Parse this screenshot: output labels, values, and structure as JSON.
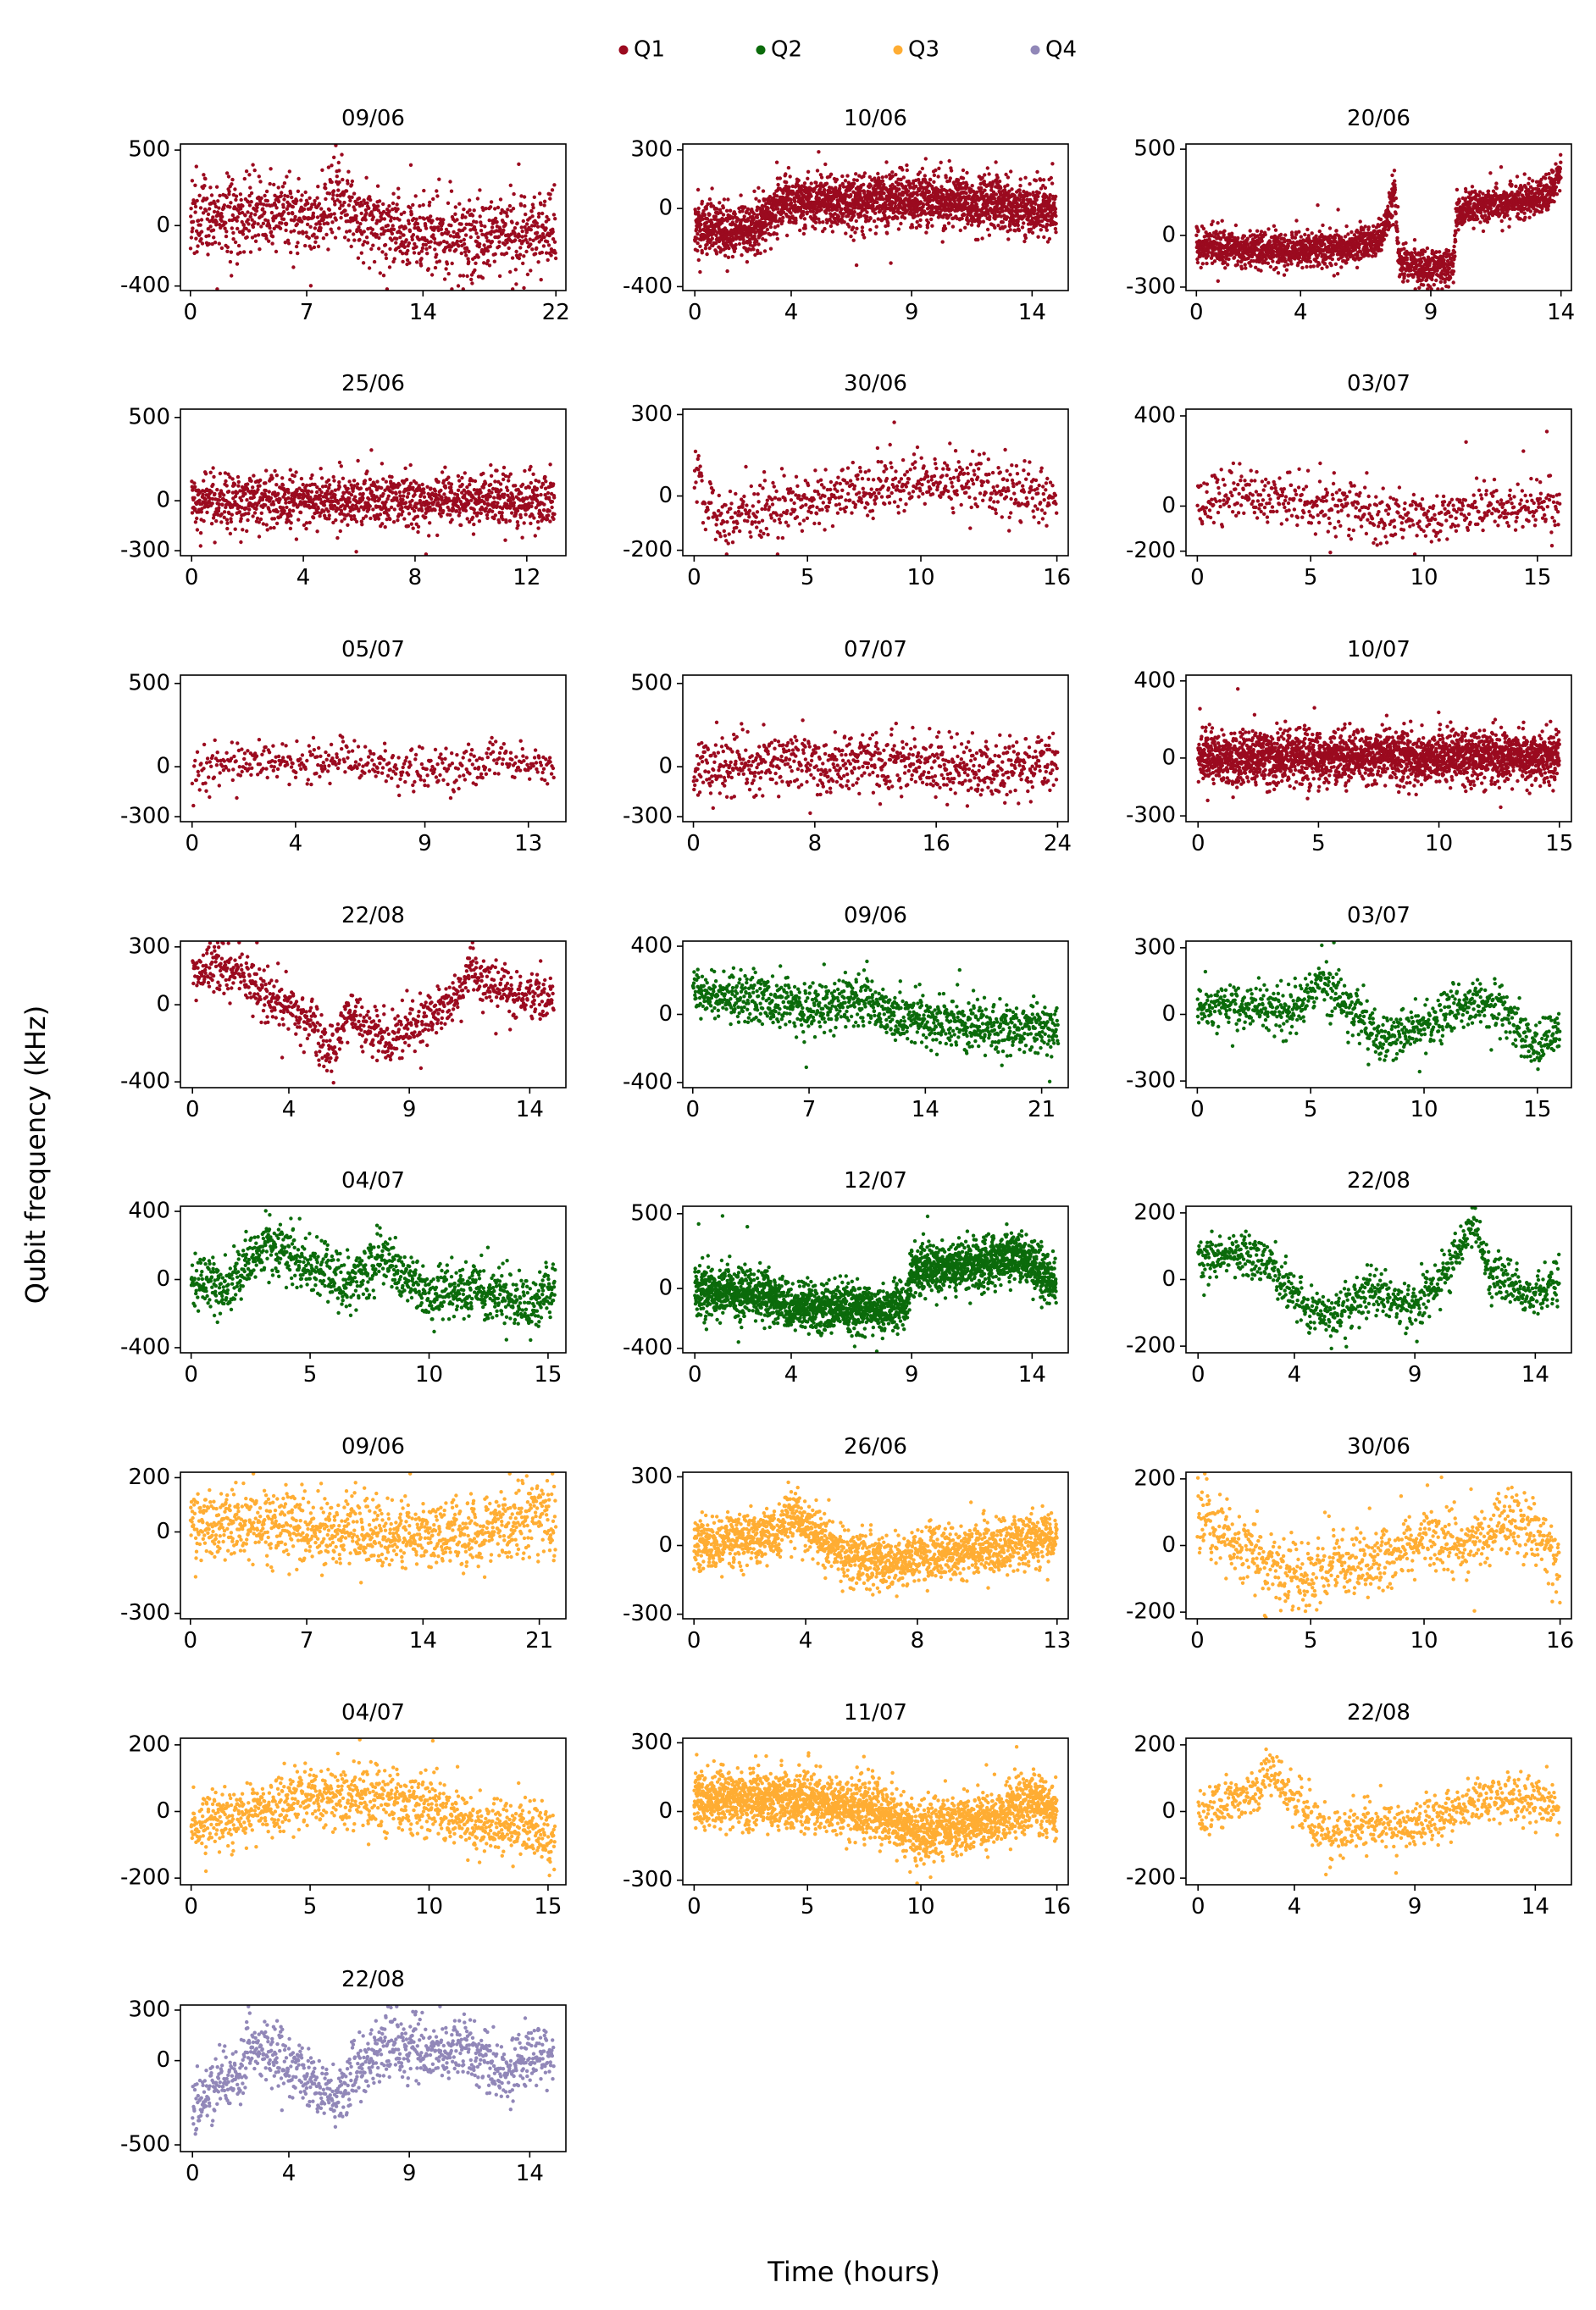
{
  "figure": {
    "ylabel": "Qubit frequency (kHz)",
    "xlabel": "Time (hours)"
  },
  "legend": [
    {
      "label": "Q1",
      "color": "#9b0a1f"
    },
    {
      "label": "Q2",
      "color": "#0b6b0b"
    },
    {
      "label": "Q3",
      "color": "#ffad33"
    },
    {
      "label": "Q4",
      "color": "#9187b8"
    }
  ],
  "chart_data": [
    {
      "type": "scatter",
      "title": "09/06",
      "series": "Q1",
      "xlim": [
        -0.6,
        22.6
      ],
      "xticks": [
        0,
        7,
        14,
        22
      ],
      "ylim": [
        -430,
        540
      ],
      "yticks": [
        500,
        0,
        -400
      ],
      "yticklabels": [
        "500",
        "0",
        "-400"
      ],
      "duration": 22,
      "n": 1200,
      "sigma": 130,
      "anchors": [
        [
          0,
          80
        ],
        [
          4,
          70
        ],
        [
          7,
          60
        ],
        [
          9,
          180
        ],
        [
          10,
          100
        ],
        [
          12,
          -20
        ],
        [
          16,
          -110
        ],
        [
          19,
          -60
        ],
        [
          22,
          -50
        ]
      ]
    },
    {
      "type": "scatter",
      "title": "10/06",
      "series": "Q1",
      "xlim": [
        -0.5,
        15.5
      ],
      "xticks": [
        0,
        4,
        9,
        14
      ],
      "ylim": [
        -420,
        330
      ],
      "yticks": [
        300,
        0,
        -400
      ],
      "yticklabels": [
        "300",
        "0",
        "-400"
      ],
      "duration": 15,
      "n": 2600,
      "sigma": 65,
      "anchors": [
        [
          0,
          -100
        ],
        [
          2.5,
          -110
        ],
        [
          3,
          -40
        ],
        [
          3.5,
          20
        ],
        [
          9,
          50
        ],
        [
          11,
          40
        ],
        [
          15,
          -10
        ]
      ]
    },
    {
      "type": "scatter",
      "title": "20/06",
      "series": "Q1",
      "xlim": [
        -0.4,
        14.4
      ],
      "xticks": [
        0,
        4,
        9,
        14
      ],
      "ylim": [
        -320,
        530
      ],
      "yticks": [
        500,
        0,
        -300
      ],
      "yticklabels": [
        "500",
        "0",
        "-300"
      ],
      "duration": 14,
      "n": 2200,
      "sigma": 50,
      "anchors": [
        [
          0,
          -60
        ],
        [
          3,
          -90
        ],
        [
          6,
          -60
        ],
        [
          7,
          -20
        ],
        [
          7.4,
          120
        ],
        [
          7.6,
          280
        ],
        [
          7.8,
          -170
        ],
        [
          9,
          -180
        ],
        [
          9.9,
          -180
        ],
        [
          10,
          130
        ],
        [
          12,
          190
        ],
        [
          13.5,
          230
        ],
        [
          14,
          380
        ]
      ]
    },
    {
      "type": "scatter",
      "title": "25/06",
      "series": "Q1",
      "xlim": [
        -0.4,
        13.4
      ],
      "xticks": [
        0,
        4,
        8,
        12
      ],
      "ylim": [
        -330,
        550
      ],
      "yticks": [
        500,
        0,
        -300
      ],
      "yticklabels": [
        "500",
        "0",
        "-300"
      ],
      "duration": 13,
      "n": 1300,
      "sigma": 80,
      "anchors": [
        [
          0,
          0
        ],
        [
          13,
          0
        ]
      ]
    },
    {
      "type": "scatter",
      "title": "30/06",
      "series": "Q1",
      "xlim": [
        -0.5,
        16.5
      ],
      "xticks": [
        0,
        5,
        10,
        16
      ],
      "ylim": [
        -220,
        320
      ],
      "yticks": [
        300,
        0,
        -200
      ],
      "yticklabels": [
        "300",
        "0",
        "-200"
      ],
      "duration": 16,
      "n": 650,
      "sigma": 55,
      "anchors": [
        [
          0,
          100
        ],
        [
          1,
          -100
        ],
        [
          3,
          -50
        ],
        [
          6,
          0
        ],
        [
          10,
          60
        ],
        [
          13,
          40
        ],
        [
          16,
          -20
        ]
      ]
    },
    {
      "type": "scatter",
      "title": "03/07",
      "series": "Q1",
      "xlim": [
        -0.5,
        16.5
      ],
      "xticks": [
        0,
        5,
        10,
        15
      ],
      "ylim": [
        -220,
        430
      ],
      "yticks": [
        400,
        0,
        -200
      ],
      "yticklabels": [
        "400",
        "0",
        "-200"
      ],
      "duration": 16,
      "n": 600,
      "sigma": 60,
      "anchors": [
        [
          0,
          0
        ],
        [
          2,
          50
        ],
        [
          5,
          20
        ],
        [
          8,
          -30
        ],
        [
          10,
          -70
        ],
        [
          12,
          -10
        ],
        [
          16,
          0
        ]
      ]
    },
    {
      "type": "scatter",
      "title": "05/07",
      "series": "Q1",
      "xlim": [
        -0.45,
        14.45
      ],
      "xticks": [
        0,
        4,
        9,
        13
      ],
      "ylim": [
        -330,
        550
      ],
      "yticks": [
        500,
        0,
        -300
      ],
      "yticklabels": [
        "500",
        "0",
        "-300"
      ],
      "duration": 14,
      "n": 450,
      "sigma": 60,
      "anchors": [
        [
          0,
          -40
        ],
        [
          3,
          50
        ],
        [
          6,
          20
        ],
        [
          10,
          -30
        ],
        [
          12,
          60
        ],
        [
          14,
          -20
        ]
      ]
    },
    {
      "type": "scatter",
      "title": "07/07",
      "series": "Q1",
      "xlim": [
        -0.7,
        24.7
      ],
      "xticks": [
        0,
        8,
        16,
        24
      ],
      "ylim": [
        -330,
        550
      ],
      "yticks": [
        500,
        0,
        -300
      ],
      "yticklabels": [
        "500",
        "0",
        "-300"
      ],
      "duration": 24,
      "n": 800,
      "sigma": 90,
      "anchors": [
        [
          0,
          -30
        ],
        [
          6,
          40
        ],
        [
          12,
          20
        ],
        [
          18,
          0
        ],
        [
          24,
          0
        ]
      ]
    },
    {
      "type": "scatter",
      "title": "10/07",
      "series": "Q1",
      "xlim": [
        -0.5,
        15.5
      ],
      "xticks": [
        0,
        5,
        10,
        15
      ],
      "ylim": [
        -330,
        430
      ],
      "yticks": [
        400,
        0,
        -300
      ],
      "yticklabels": [
        "400",
        "0",
        "-300"
      ],
      "duration": 15,
      "n": 2600,
      "sigma": 65,
      "anchors": [
        [
          0,
          0
        ],
        [
          15,
          10
        ]
      ]
    },
    {
      "type": "scatter",
      "title": "22/08",
      "series": "Q1",
      "xlim": [
        -0.5,
        15.5
      ],
      "xticks": [
        0,
        4,
        9,
        14
      ],
      "ylim": [
        -430,
        330
      ],
      "yticks": [
        300,
        0,
        -400
      ],
      "yticklabels": [
        "300",
        "0",
        "-400"
      ],
      "duration": 15,
      "n": 900,
      "sigma": 65,
      "anchors": [
        [
          0,
          150
        ],
        [
          1,
          220
        ],
        [
          2,
          160
        ],
        [
          3,
          50
        ],
        [
          5,
          -100
        ],
        [
          5.7,
          -280
        ],
        [
          6.5,
          -20
        ],
        [
          8,
          -200
        ],
        [
          10,
          -50
        ],
        [
          11,
          50
        ],
        [
          11.5,
          200
        ],
        [
          12,
          100
        ],
        [
          15,
          0
        ]
      ]
    },
    {
      "type": "scatter",
      "title": "09/06",
      "series": "Q2",
      "xlim": [
        -0.6,
        22.6
      ],
      "xticks": [
        0,
        7,
        14,
        21
      ],
      "ylim": [
        -430,
        430
      ],
      "yticks": [
        400,
        0,
        -400
      ],
      "yticklabels": [
        "400",
        "0",
        "-400"
      ],
      "duration": 22,
      "n": 1100,
      "sigma": 75,
      "anchors": [
        [
          0,
          120
        ],
        [
          3,
          100
        ],
        [
          7,
          40
        ],
        [
          10,
          90
        ],
        [
          13,
          -30
        ],
        [
          18,
          -70
        ],
        [
          22,
          -80
        ]
      ]
    },
    {
      "type": "scatter",
      "title": "03/07",
      "series": "Q2",
      "xlim": [
        -0.5,
        16.5
      ],
      "xticks": [
        0,
        5,
        10,
        15
      ],
      "ylim": [
        -330,
        330
      ],
      "yticks": [
        300,
        0,
        -300
      ],
      "yticklabels": [
        "300",
        "0",
        "-300"
      ],
      "duration": 16,
      "n": 900,
      "sigma": 55,
      "anchors": [
        [
          0,
          30
        ],
        [
          2,
          50
        ],
        [
          4,
          0
        ],
        [
          5.5,
          150
        ],
        [
          7,
          0
        ],
        [
          8,
          -110
        ],
        [
          10,
          -50
        ],
        [
          12,
          50
        ],
        [
          13,
          50
        ],
        [
          15,
          -150
        ],
        [
          16,
          -100
        ]
      ]
    },
    {
      "type": "scatter",
      "title": "04/07",
      "series": "Q2",
      "xlim": [
        -0.45,
        15.75
      ],
      "xticks": [
        0,
        5,
        10,
        15
      ],
      "ylim": [
        -430,
        430
      ],
      "yticks": [
        400,
        0,
        -400
      ],
      "yticklabels": [
        "400",
        "0",
        "-400"
      ],
      "duration": 15.3,
      "n": 1100,
      "sigma": 80,
      "anchors": [
        [
          0,
          0
        ],
        [
          1.5,
          -50
        ],
        [
          3,
          200
        ],
        [
          5,
          80
        ],
        [
          7,
          -30
        ],
        [
          8,
          150
        ],
        [
          10,
          -100
        ],
        [
          12,
          -50
        ],
        [
          14,
          -150
        ],
        [
          15.3,
          -50
        ]
      ]
    },
    {
      "type": "scatter",
      "title": "12/07",
      "series": "Q2",
      "xlim": [
        -0.5,
        15.5
      ],
      "xticks": [
        0,
        4,
        9,
        14
      ],
      "ylim": [
        -430,
        550
      ],
      "yticks": [
        500,
        0,
        -400
      ],
      "yticklabels": [
        "500",
        "0",
        "-400"
      ],
      "duration": 15,
      "n": 2600,
      "sigma": 80,
      "anchors": [
        [
          0,
          0
        ],
        [
          3,
          -50
        ],
        [
          4,
          -130
        ],
        [
          8.8,
          -130
        ],
        [
          9,
          120
        ],
        [
          12,
          170
        ],
        [
          13.5,
          230
        ],
        [
          15,
          30
        ]
      ]
    },
    {
      "type": "scatter",
      "title": "22/08",
      "series": "Q2",
      "xlim": [
        -0.5,
        15.5
      ],
      "xticks": [
        0,
        4,
        9,
        14
      ],
      "ylim": [
        -220,
        220
      ],
      "yticks": [
        200,
        0,
        -200
      ],
      "yticklabels": [
        "200",
        "0",
        "-200"
      ],
      "duration": 15,
      "n": 900,
      "sigma": 35,
      "anchors": [
        [
          0,
          50
        ],
        [
          1,
          80
        ],
        [
          3,
          50
        ],
        [
          4,
          -50
        ],
        [
          5.5,
          -120
        ],
        [
          7,
          -30
        ],
        [
          9,
          -80
        ],
        [
          10,
          0
        ],
        [
          11,
          100
        ],
        [
          11.5,
          180
        ],
        [
          12,
          20
        ],
        [
          14,
          -50
        ],
        [
          15,
          0
        ]
      ]
    },
    {
      "type": "scatter",
      "title": "09/06",
      "series": "Q3",
      "xlim": [
        -0.6,
        22.6
      ],
      "xticks": [
        0,
        7,
        14,
        21
      ],
      "ylim": [
        -320,
        220
      ],
      "yticks": [
        200,
        0,
        -300
      ],
      "yticklabels": [
        "200",
        "0",
        "-300"
      ],
      "duration": 22,
      "n": 1100,
      "sigma": 65,
      "anchors": [
        [
          0,
          20
        ],
        [
          6,
          30
        ],
        [
          12,
          -20
        ],
        [
          18,
          0
        ],
        [
          21,
          70
        ],
        [
          22,
          30
        ]
      ]
    },
    {
      "type": "scatter",
      "title": "26/06",
      "series": "Q3",
      "xlim": [
        -0.4,
        13.4
      ],
      "xticks": [
        0,
        4,
        8,
        13
      ],
      "ylim": [
        -320,
        320
      ],
      "yticks": [
        300,
        0,
        -300
      ],
      "yticklabels": [
        "300",
        "0",
        "-300"
      ],
      "duration": 13,
      "n": 1800,
      "sigma": 55,
      "anchors": [
        [
          0,
          0
        ],
        [
          3,
          50
        ],
        [
          3.5,
          150
        ],
        [
          4.5,
          40
        ],
        [
          5.5,
          -50
        ],
        [
          7,
          -80
        ],
        [
          9,
          -30
        ],
        [
          11,
          0
        ],
        [
          13,
          50
        ]
      ]
    },
    {
      "type": "scatter",
      "title": "30/06",
      "series": "Q3",
      "xlim": [
        -0.5,
        16.5
      ],
      "xticks": [
        0,
        5,
        10,
        16
      ],
      "ylim": [
        -220,
        220
      ],
      "yticks": [
        200,
        0,
        -200
      ],
      "yticklabels": [
        "200",
        "0",
        "-200"
      ],
      "duration": 16,
      "n": 900,
      "sigma": 50,
      "anchors": [
        [
          0,
          100
        ],
        [
          1,
          40
        ],
        [
          3,
          -50
        ],
        [
          4.5,
          -100
        ],
        [
          6,
          -50
        ],
        [
          8,
          -50
        ],
        [
          10,
          30
        ],
        [
          12,
          -10
        ],
        [
          14,
          80
        ],
        [
          15,
          20
        ],
        [
          16,
          -50
        ]
      ]
    },
    {
      "type": "scatter",
      "title": "04/07",
      "series": "Q3",
      "xlim": [
        -0.45,
        15.75
      ],
      "xticks": [
        0,
        5,
        10,
        15
      ],
      "ylim": [
        -220,
        220
      ],
      "yticks": [
        200,
        0,
        -200
      ],
      "yticklabels": [
        "200",
        "0",
        "-200"
      ],
      "duration": 15.3,
      "n": 1100,
      "sigma": 45,
      "anchors": [
        [
          0,
          -40
        ],
        [
          2,
          -10
        ],
        [
          4,
          20
        ],
        [
          6,
          50
        ],
        [
          8,
          40
        ],
        [
          10,
          20
        ],
        [
          12,
          -50
        ],
        [
          14,
          -40
        ],
        [
          15.3,
          -80
        ]
      ]
    },
    {
      "type": "scatter",
      "title": "11/07",
      "series": "Q3",
      "xlim": [
        -0.5,
        16.5
      ],
      "xticks": [
        0,
        5,
        10,
        16
      ],
      "ylim": [
        -320,
        320
      ],
      "yticks": [
        300,
        0,
        -300
      ],
      "yticklabels": [
        "300",
        "0",
        "-300"
      ],
      "duration": 16,
      "n": 2600,
      "sigma": 60,
      "anchors": [
        [
          0,
          60
        ],
        [
          5,
          50
        ],
        [
          8,
          0
        ],
        [
          10,
          -100
        ],
        [
          13,
          -30
        ],
        [
          15,
          50
        ],
        [
          16,
          0
        ]
      ]
    },
    {
      "type": "scatter",
      "title": "22/08",
      "series": "Q3",
      "xlim": [
        -0.5,
        15.5
      ],
      "xticks": [
        0,
        4,
        9,
        14
      ],
      "ylim": [
        -220,
        220
      ],
      "yticks": [
        200,
        0,
        -200
      ],
      "yticklabels": [
        "200",
        "0",
        "-200"
      ],
      "duration": 15,
      "n": 800,
      "sigma": 35,
      "anchors": [
        [
          0,
          0
        ],
        [
          2,
          40
        ],
        [
          3,
          120
        ],
        [
          4,
          40
        ],
        [
          5.5,
          -80
        ],
        [
          7,
          -30
        ],
        [
          9,
          -50
        ],
        [
          11,
          20
        ],
        [
          13,
          40
        ],
        [
          15,
          10
        ]
      ]
    },
    {
      "type": "scatter",
      "title": "22/08",
      "series": "Q4",
      "xlim": [
        -0.5,
        15.5
      ],
      "xticks": [
        0,
        4,
        9,
        14
      ],
      "ylim": [
        -540,
        330
      ],
      "yticks": [
        300,
        0,
        -500
      ],
      "yticklabels": [
        "300",
        "0",
        "-500"
      ],
      "duration": 15,
      "n": 1000,
      "sigma": 90,
      "anchors": [
        [
          0,
          -300
        ],
        [
          1,
          -150
        ],
        [
          2,
          -100
        ],
        [
          2.5,
          100
        ],
        [
          4,
          0
        ],
        [
          5,
          -100
        ],
        [
          6,
          -250
        ],
        [
          7,
          -50
        ],
        [
          8,
          100
        ],
        [
          10,
          50
        ],
        [
          11,
          120
        ],
        [
          13,
          -50
        ],
        [
          14,
          50
        ],
        [
          15,
          0
        ]
      ]
    }
  ]
}
